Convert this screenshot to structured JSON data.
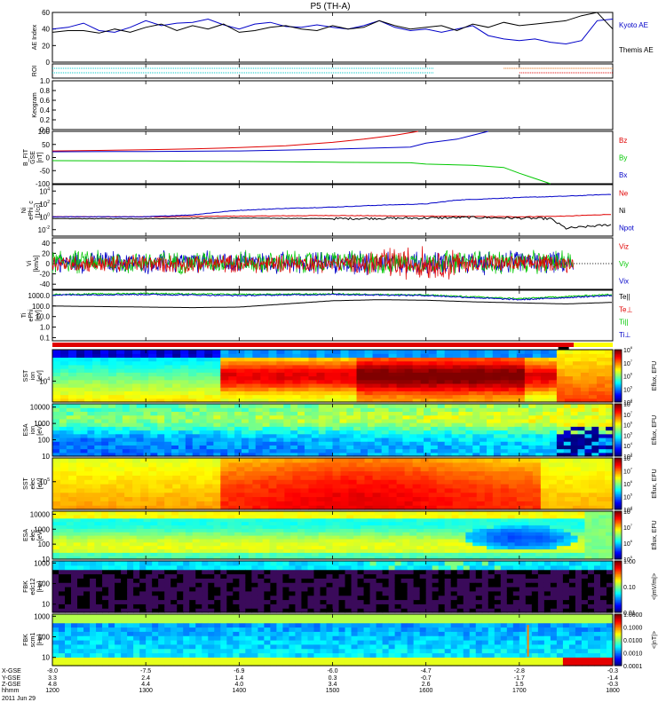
{
  "title": "P5 (TH-A)",
  "colors": {
    "red": "#e00000",
    "green": "#00c800",
    "blue": "#0000c8",
    "black": "#000000",
    "cyan": "#00c8c8",
    "orange": "#e06000"
  },
  "chart_data": {
    "type": "multi-panel time series and spectrograms",
    "x_time_ticks": [
      "1200",
      "1300",
      "1400",
      "1500",
      "1600",
      "1700",
      "1800"
    ],
    "x_range_hhmm": [
      "1200",
      "1800"
    ],
    "orbit_rows": [
      {
        "label": "X-GSE",
        "values": [
          "-8.0",
          "-7.5",
          "-6.9",
          "-6.0",
          "-4.7",
          "-2.8",
          "-0.3"
        ]
      },
      {
        "label": "Y-GSE",
        "values": [
          "3.3",
          "2.4",
          "1.4",
          "0.3",
          "-0.7",
          "-1.7",
          "-1.4"
        ]
      },
      {
        "label": "Z-GSE",
        "values": [
          "4.8",
          "4.4",
          "4.0",
          "3.4",
          "2.6",
          "1.5",
          "-0.3"
        ]
      },
      {
        "label": "hhmm",
        "values": [
          "1200",
          "1300",
          "1400",
          "1500",
          "1600",
          "1700",
          "1800"
        ]
      }
    ],
    "date_label": "2011 Jun 29",
    "panels": [
      {
        "id": "ae",
        "ylabel": "AE Index",
        "type": "line",
        "yticks": [
          "0",
          "20",
          "40",
          "60"
        ],
        "ylim": [
          0,
          60
        ],
        "legend": [
          {
            "name": "Kyoto AE",
            "color": "blue"
          },
          {
            "name": "Themis AE",
            "color": "black"
          }
        ],
        "series": [
          {
            "name": "Kyoto AE",
            "color": "blue",
            "x": [
              1200,
              1210,
              1220,
              1230,
              1240,
              1250,
              1300,
              1310,
              1320,
              1330,
              1340,
              1350,
              1400,
              1410,
              1420,
              1430,
              1440,
              1450,
              1500,
              1510,
              1520,
              1530,
              1540,
              1550,
              1600,
              1610,
              1620,
              1630,
              1640,
              1650,
              1700,
              1710,
              1720,
              1730,
              1740,
              1750,
              1800
            ],
            "y": [
              40,
              42,
              47,
              38,
              36,
              42,
              50,
              44,
              47,
              48,
              52,
              45,
              40,
              46,
              48,
              43,
              42,
              45,
              42,
              40,
              44,
              50,
              42,
              38,
              40,
              36,
              40,
              44,
              32,
              28,
              26,
              28,
              24,
              22,
              26,
              50,
              52
            ]
          },
          {
            "name": "Themis AE",
            "color": "black",
            "x": [
              1200,
              1210,
              1220,
              1230,
              1240,
              1250,
              1300,
              1310,
              1320,
              1330,
              1340,
              1350,
              1400,
              1410,
              1420,
              1430,
              1440,
              1450,
              1500,
              1510,
              1520,
              1530,
              1540,
              1550,
              1600,
              1610,
              1620,
              1630,
              1640,
              1650,
              1700,
              1710,
              1720,
              1730,
              1740,
              1750,
              1800
            ],
            "y": [
              36,
              38,
              38,
              35,
              40,
              36,
              42,
              46,
              38,
              44,
              40,
              46,
              36,
              38,
              42,
              44,
              40,
              38,
              44,
              40,
              42,
              50,
              44,
              40,
              42,
              44,
              38,
              46,
              42,
              48,
              44,
              46,
              48,
              50,
              56,
              60,
              40
            ]
          }
        ]
      },
      {
        "id": "roi",
        "ylabel": "ROI",
        "type": "flags",
        "segments": [
          {
            "color": "cyan",
            "row": 1,
            "x": [
              1200,
              1605
            ]
          },
          {
            "color": "cyan",
            "row": 2,
            "x": [
              1200,
              1605
            ]
          },
          {
            "color": "orange",
            "row": 1,
            "x": [
              1650,
              1800
            ]
          },
          {
            "color": "red",
            "row": 2,
            "x": [
              1700,
              1800
            ]
          }
        ]
      },
      {
        "id": "keogram",
        "ylabel": "Keogram",
        "type": "empty",
        "yticks": [
          "0.0",
          "0.2",
          "0.4",
          "0.6",
          "0.8",
          "1.0"
        ],
        "ylim": [
          0,
          1
        ]
      },
      {
        "id": "bfield",
        "ylabel": "B_FIT\nGSE\n[nT]",
        "type": "line",
        "yticks": [
          "-100",
          "-50",
          "0",
          "50",
          "100"
        ],
        "ylim": [
          -100,
          100
        ],
        "legend": [
          {
            "name": "Bz",
            "color": "red"
          },
          {
            "name": "By",
            "color": "green"
          },
          {
            "name": "Bx",
            "color": "blue"
          }
        ],
        "series": [
          {
            "name": "Bz",
            "color": "red",
            "x": [
              1200,
              1230,
              1300,
              1330,
              1400,
              1430,
              1500,
              1520,
              1540,
              1550,
              1555
            ],
            "y": [
              25,
              27,
              30,
              33,
              38,
              45,
              58,
              70,
              85,
              95,
              100
            ]
          },
          {
            "name": "By",
            "color": "green",
            "x": [
              1200,
              1300,
              1400,
              1500,
              1550,
              1600,
              1630,
              1650,
              1700,
              1710,
              1720
            ],
            "y": [
              -12,
              -13,
              -15,
              -18,
              -20,
              -25,
              -30,
              -38,
              -60,
              -80,
              -100
            ]
          },
          {
            "name": "Bx",
            "color": "blue",
            "x": [
              1200,
              1300,
              1400,
              1500,
              1550,
              1600,
              1620,
              1630,
              1640
            ],
            "y": [
              22,
              23,
              25,
              32,
              40,
              55,
              70,
              85,
              100
            ]
          }
        ]
      },
      {
        "id": "density",
        "ylabel": "Ni\nePhi_c\n[1/cc]",
        "type": "line",
        "log": true,
        "yticks": [
          "10^-2",
          "10^0",
          "10^2",
          "10^4"
        ],
        "ylim_log": [
          -3,
          5
        ],
        "legend": [
          {
            "name": "Ne",
            "color": "red"
          },
          {
            "name": "Ni",
            "color": "black"
          },
          {
            "name": "Npot",
            "color": "blue"
          }
        ],
        "series": [
          {
            "name": "Ne",
            "color": "red",
            "x": [
              1200,
              1300,
              1400,
              1500,
              1600,
              1700,
              1730,
              1800
            ],
            "y": [
              0.0,
              0.0,
              0.1,
              0.2,
              0.1,
              0.0,
              0.1,
              0.4
            ]
          },
          {
            "name": "Ni",
            "color": "black",
            "x": [
              1200,
              1300,
              1400,
              1500,
              1600,
              1630,
              1700,
              1720,
              1730,
              1800
            ],
            "y": [
              -0.3,
              -0.3,
              -0.2,
              -0.3,
              -0.2,
              -0.1,
              -0.2,
              -0.3,
              -1.8,
              -1.2
            ]
          },
          {
            "name": "Npot",
            "color": "blue",
            "x": [
              1200,
              1300,
              1330,
              1350,
              1400,
              1430,
              1500,
              1530,
              1600,
              1620,
              1700,
              1730,
              1800
            ],
            "y": [
              0.0,
              0.0,
              0.3,
              0.8,
              1.0,
              1.3,
              1.5,
              1.8,
              2.0,
              2.6,
              3.0,
              3.2,
              3.5
            ]
          }
        ]
      },
      {
        "id": "velocity",
        "ylabel": "Vi\n[km/s]",
        "type": "noisy-line",
        "yticks": [
          "-40",
          "-20",
          "0",
          "20",
          "40"
        ],
        "ylim": [
          -50,
          50
        ],
        "legend": [
          {
            "name": "Viz",
            "color": "red"
          },
          {
            "name": "Viy",
            "color": "green"
          },
          {
            "name": "Vix",
            "color": "blue"
          }
        ],
        "series": [
          {
            "name": "Vix",
            "color": "blue",
            "x": [
              1200,
              1735
            ],
            "center": 2,
            "amplitude": 18
          },
          {
            "name": "Viy",
            "color": "green",
            "x": [
              1200,
              1735
            ],
            "center": 3,
            "amplitude": 18
          },
          {
            "name": "Viz",
            "color": "red",
            "x": [
              1200,
              1735
            ],
            "center": 0,
            "amplitude": 14
          }
        ]
      },
      {
        "id": "temperature",
        "ylabel": "Ti\nePhi\n[eV]",
        "type": "line",
        "log": true,
        "yticks": [
          "0.1",
          "1.0",
          "10.0",
          "100.0",
          "1000.0"
        ],
        "ylim_log": [
          -1.3,
          3.5
        ],
        "legend": [
          {
            "name": "Te||",
            "color": "black"
          },
          {
            "name": "Te⊥",
            "color": "red"
          },
          {
            "name": "Ti||",
            "color": "green"
          },
          {
            "name": "Ti⊥",
            "color": "blue"
          }
        ],
        "series": [
          {
            "name": "Ti||",
            "color": "green",
            "x": [
              1200,
              1300,
              1400,
              1500,
              1600,
              1700,
              1730,
              1800
            ],
            "y": [
              3.1,
              3.2,
              3.1,
              3.15,
              3.05,
              2.7,
              2.9,
              3.1
            ]
          },
          {
            "name": "Ti⊥",
            "color": "blue",
            "x": [
              1200,
              1300,
              1400,
              1500,
              1600,
              1700,
              1730,
              1800
            ],
            "y": [
              3.05,
              3.1,
              3.0,
              3.1,
              3.0,
              2.6,
              2.8,
              3.0
            ]
          },
          {
            "name": "Te||",
            "color": "black",
            "x": [
              1200,
              1230,
              1300,
              1330,
              1400,
              1430,
              1500,
              1530,
              1600,
              1630,
              1700,
              1730,
              1800
            ],
            "y": [
              2.0,
              1.95,
              1.9,
              1.85,
              1.9,
              2.2,
              2.5,
              2.6,
              2.55,
              2.4,
              2.3,
              2.2,
              2.35
            ]
          }
        ]
      },
      {
        "id": "sst-ion",
        "ylabel": "SST\nion\n[eV]",
        "type": "spectrogram",
        "yticks": [
          "10^4"
        ],
        "colorbar_label": "Eflux, EFU",
        "colorbar_ticks": [
          "10^4",
          "10^5",
          "10^6",
          "10^7",
          "10^8"
        ]
      },
      {
        "id": "esa-ion",
        "ylabel": "ESA\nion\n[eV]",
        "type": "spectrogram",
        "yticks": [
          "10",
          "100",
          "1000",
          "10000"
        ],
        "colorbar_label": "Eflux, EFU",
        "colorbar_ticks": [
          "10^3",
          "10^4",
          "10^5",
          "10^6",
          "10^7",
          "10^8"
        ]
      },
      {
        "id": "sst-elec",
        "ylabel": "SST\nelec\n[eV]",
        "type": "spectrogram",
        "yticks": [
          "10^5"
        ],
        "colorbar_label": "Eflux, EFU",
        "colorbar_ticks": [
          "10^4",
          "10^5",
          "10^6",
          "10^7",
          "10^8"
        ]
      },
      {
        "id": "esa-elec",
        "ylabel": "ESA\nelec\n[eV]",
        "type": "spectrogram",
        "yticks": [
          "10",
          "100",
          "1000",
          "10000"
        ],
        "colorbar_label": "Eflux, EFU",
        "colorbar_ticks": [
          "10^5",
          "10^6",
          "10^7",
          "10^8"
        ]
      },
      {
        "id": "fbk-e",
        "ylabel": "FBK\nedc12\n[Hz]",
        "type": "spectrogram",
        "yticks": [
          "10",
          "100",
          "1000"
        ],
        "colorbar_label": "<|mV/m|>",
        "colorbar_ticks": [
          "0.01",
          "0.10",
          "1.00"
        ]
      },
      {
        "id": "fbk-b",
        "ylabel": "FBK\nscm1\n[Hz]",
        "type": "spectrogram",
        "yticks": [
          "10",
          "100",
          "1000"
        ],
        "colorbar_label": "<|nT|>",
        "colorbar_ticks": [
          "0.0001",
          "0.0010",
          "0.0100",
          "0.1000",
          "1.0000"
        ]
      }
    ]
  }
}
